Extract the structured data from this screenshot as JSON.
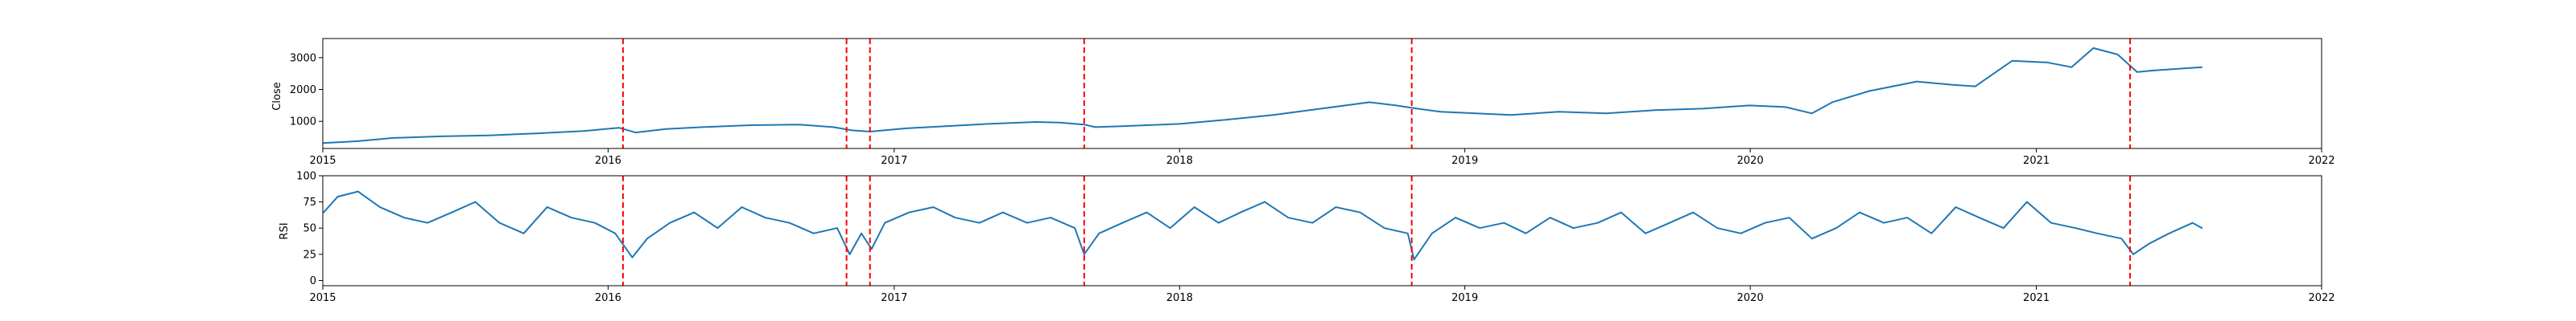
{
  "chart_data": [
    {
      "type": "line",
      "title": "",
      "xlabel": "",
      "ylabel": "Close",
      "xlim": [
        "2015-01-01",
        "2022-01-01"
      ],
      "ylim": [
        150,
        3600
      ],
      "x_ticks": [
        "2015",
        "2016",
        "2017",
        "2018",
        "2019",
        "2020",
        "2021",
        "2022"
      ],
      "y_ticks": [
        1000,
        2000,
        3000
      ],
      "series": [
        {
          "color": "#1f77b4",
          "x": [
            "2015-01-02",
            "2015-02-15",
            "2015-04-01",
            "2015-06-01",
            "2015-08-01",
            "2015-10-01",
            "2015-12-01",
            "2016-01-15",
            "2016-02-05",
            "2016-03-15",
            "2016-05-01",
            "2016-07-01",
            "2016-09-01",
            "2016-10-15",
            "2016-11-08",
            "2016-12-01",
            "2017-01-15",
            "2017-03-01",
            "2017-05-01",
            "2017-07-01",
            "2017-08-01",
            "2017-09-01",
            "2017-09-15",
            "2017-11-01",
            "2018-01-01",
            "2018-03-01",
            "2018-05-01",
            "2018-07-01",
            "2018-09-01",
            "2018-10-05",
            "2018-11-01",
            "2018-12-01",
            "2019-01-15",
            "2019-03-01",
            "2019-05-01",
            "2019-07-01",
            "2019-09-01",
            "2019-11-01",
            "2019-12-31",
            "2020-02-15",
            "2020-03-20",
            "2020-04-15",
            "2020-06-01",
            "2020-08-01",
            "2020-09-15",
            "2020-10-15",
            "2020-12-01",
            "2021-01-15",
            "2021-02-15",
            "2021-03-15",
            "2021-04-15",
            "2021-05-10",
            "2021-06-01",
            "2021-07-01",
            "2021-08-01"
          ],
          "y": [
            320,
            380,
            480,
            530,
            560,
            620,
            700,
            800,
            650,
            760,
            820,
            880,
            900,
            820,
            720,
            680,
            780,
            840,
            920,
            980,
            960,
            900,
            820,
            860,
            920,
            1050,
            1200,
            1400,
            1600,
            1500,
            1400,
            1300,
            1250,
            1200,
            1300,
            1250,
            1350,
            1400,
            1500,
            1450,
            1250,
            1600,
            1950,
            2250,
            2150,
            2100,
            2900,
            2850,
            2700,
            3300,
            3100,
            2550,
            2600,
            2650,
            2700
          ]
        }
      ],
      "vlines": [
        "2016-01-20",
        "2016-11-01",
        "2016-12-01",
        "2017-09-01",
        "2018-10-25",
        "2021-05-01"
      ],
      "vline_color": "#ff0000",
      "grid": false,
      "legend": "none"
    },
    {
      "type": "line",
      "title": "",
      "xlabel": "",
      "ylabel": "RSI",
      "xlim": [
        "2015-01-01",
        "2022-01-01"
      ],
      "ylim": [
        -5,
        100
      ],
      "x_ticks": [
        "2015",
        "2016",
        "2017",
        "2018",
        "2019",
        "2020",
        "2021",
        "2022"
      ],
      "y_ticks": [
        0,
        25,
        50,
        75,
        100
      ],
      "series": [
        {
          "color": "#1f77b4",
          "x": [
            "2015-01-02",
            "2015-01-20",
            "2015-02-15",
            "2015-03-15",
            "2015-04-15",
            "2015-05-15",
            "2015-06-15",
            "2015-07-15",
            "2015-08-15",
            "2015-09-15",
            "2015-10-15",
            "2015-11-15",
            "2015-12-15",
            "2016-01-10",
            "2016-02-01",
            "2016-02-20",
            "2016-03-20",
            "2016-04-20",
            "2016-05-20",
            "2016-06-20",
            "2016-07-20",
            "2016-08-20",
            "2016-09-20",
            "2016-10-20",
            "2016-11-05",
            "2016-11-20",
            "2016-12-03",
            "2016-12-20",
            "2017-01-20",
            "2017-02-20",
            "2017-03-20",
            "2017-04-20",
            "2017-05-20",
            "2017-06-20",
            "2017-07-20",
            "2017-08-20",
            "2017-09-01",
            "2017-09-20",
            "2017-10-20",
            "2017-11-20",
            "2017-12-20",
            "2018-01-20",
            "2018-02-20",
            "2018-03-20",
            "2018-04-20",
            "2018-05-20",
            "2018-06-20",
            "2018-07-20",
            "2018-08-20",
            "2018-09-20",
            "2018-10-20",
            "2018-10-28",
            "2018-11-20",
            "2018-12-20",
            "2019-01-20",
            "2019-02-20",
            "2019-03-20",
            "2019-04-20",
            "2019-05-20",
            "2019-06-20",
            "2019-07-20",
            "2019-08-20",
            "2019-09-20",
            "2019-10-20",
            "2019-11-20",
            "2019-12-20",
            "2020-01-20",
            "2020-02-20",
            "2020-03-20",
            "2020-04-20",
            "2020-05-20",
            "2020-06-20",
            "2020-07-20",
            "2020-08-20",
            "2020-09-20",
            "2020-10-20",
            "2020-11-20",
            "2020-12-20",
            "2021-01-20",
            "2021-02-20",
            "2021-03-20",
            "2021-04-20",
            "2021-05-05",
            "2021-05-25",
            "2021-06-20",
            "2021-07-20",
            "2021-08-01"
          ],
          "y": [
            65,
            80,
            85,
            70,
            60,
            55,
            65,
            75,
            55,
            45,
            70,
            60,
            55,
            45,
            22,
            40,
            55,
            65,
            50,
            70,
            60,
            55,
            45,
            50,
            25,
            45,
            30,
            55,
            65,
            70,
            60,
            55,
            65,
            55,
            60,
            50,
            25,
            45,
            55,
            65,
            50,
            70,
            55,
            65,
            75,
            60,
            55,
            70,
            65,
            50,
            45,
            20,
            45,
            60,
            50,
            55,
            45,
            60,
            50,
            55,
            65,
            45,
            55,
            65,
            50,
            45,
            55,
            60,
            40,
            50,
            65,
            55,
            60,
            45,
            70,
            60,
            50,
            75,
            55,
            50,
            45,
            40,
            25,
            35,
            45,
            55,
            50
          ]
        }
      ],
      "vlines": [
        "2016-01-20",
        "2016-11-01",
        "2016-12-01",
        "2017-09-01",
        "2018-10-25",
        "2021-05-01"
      ],
      "vline_color": "#ff0000",
      "grid": false,
      "legend": "none"
    }
  ]
}
